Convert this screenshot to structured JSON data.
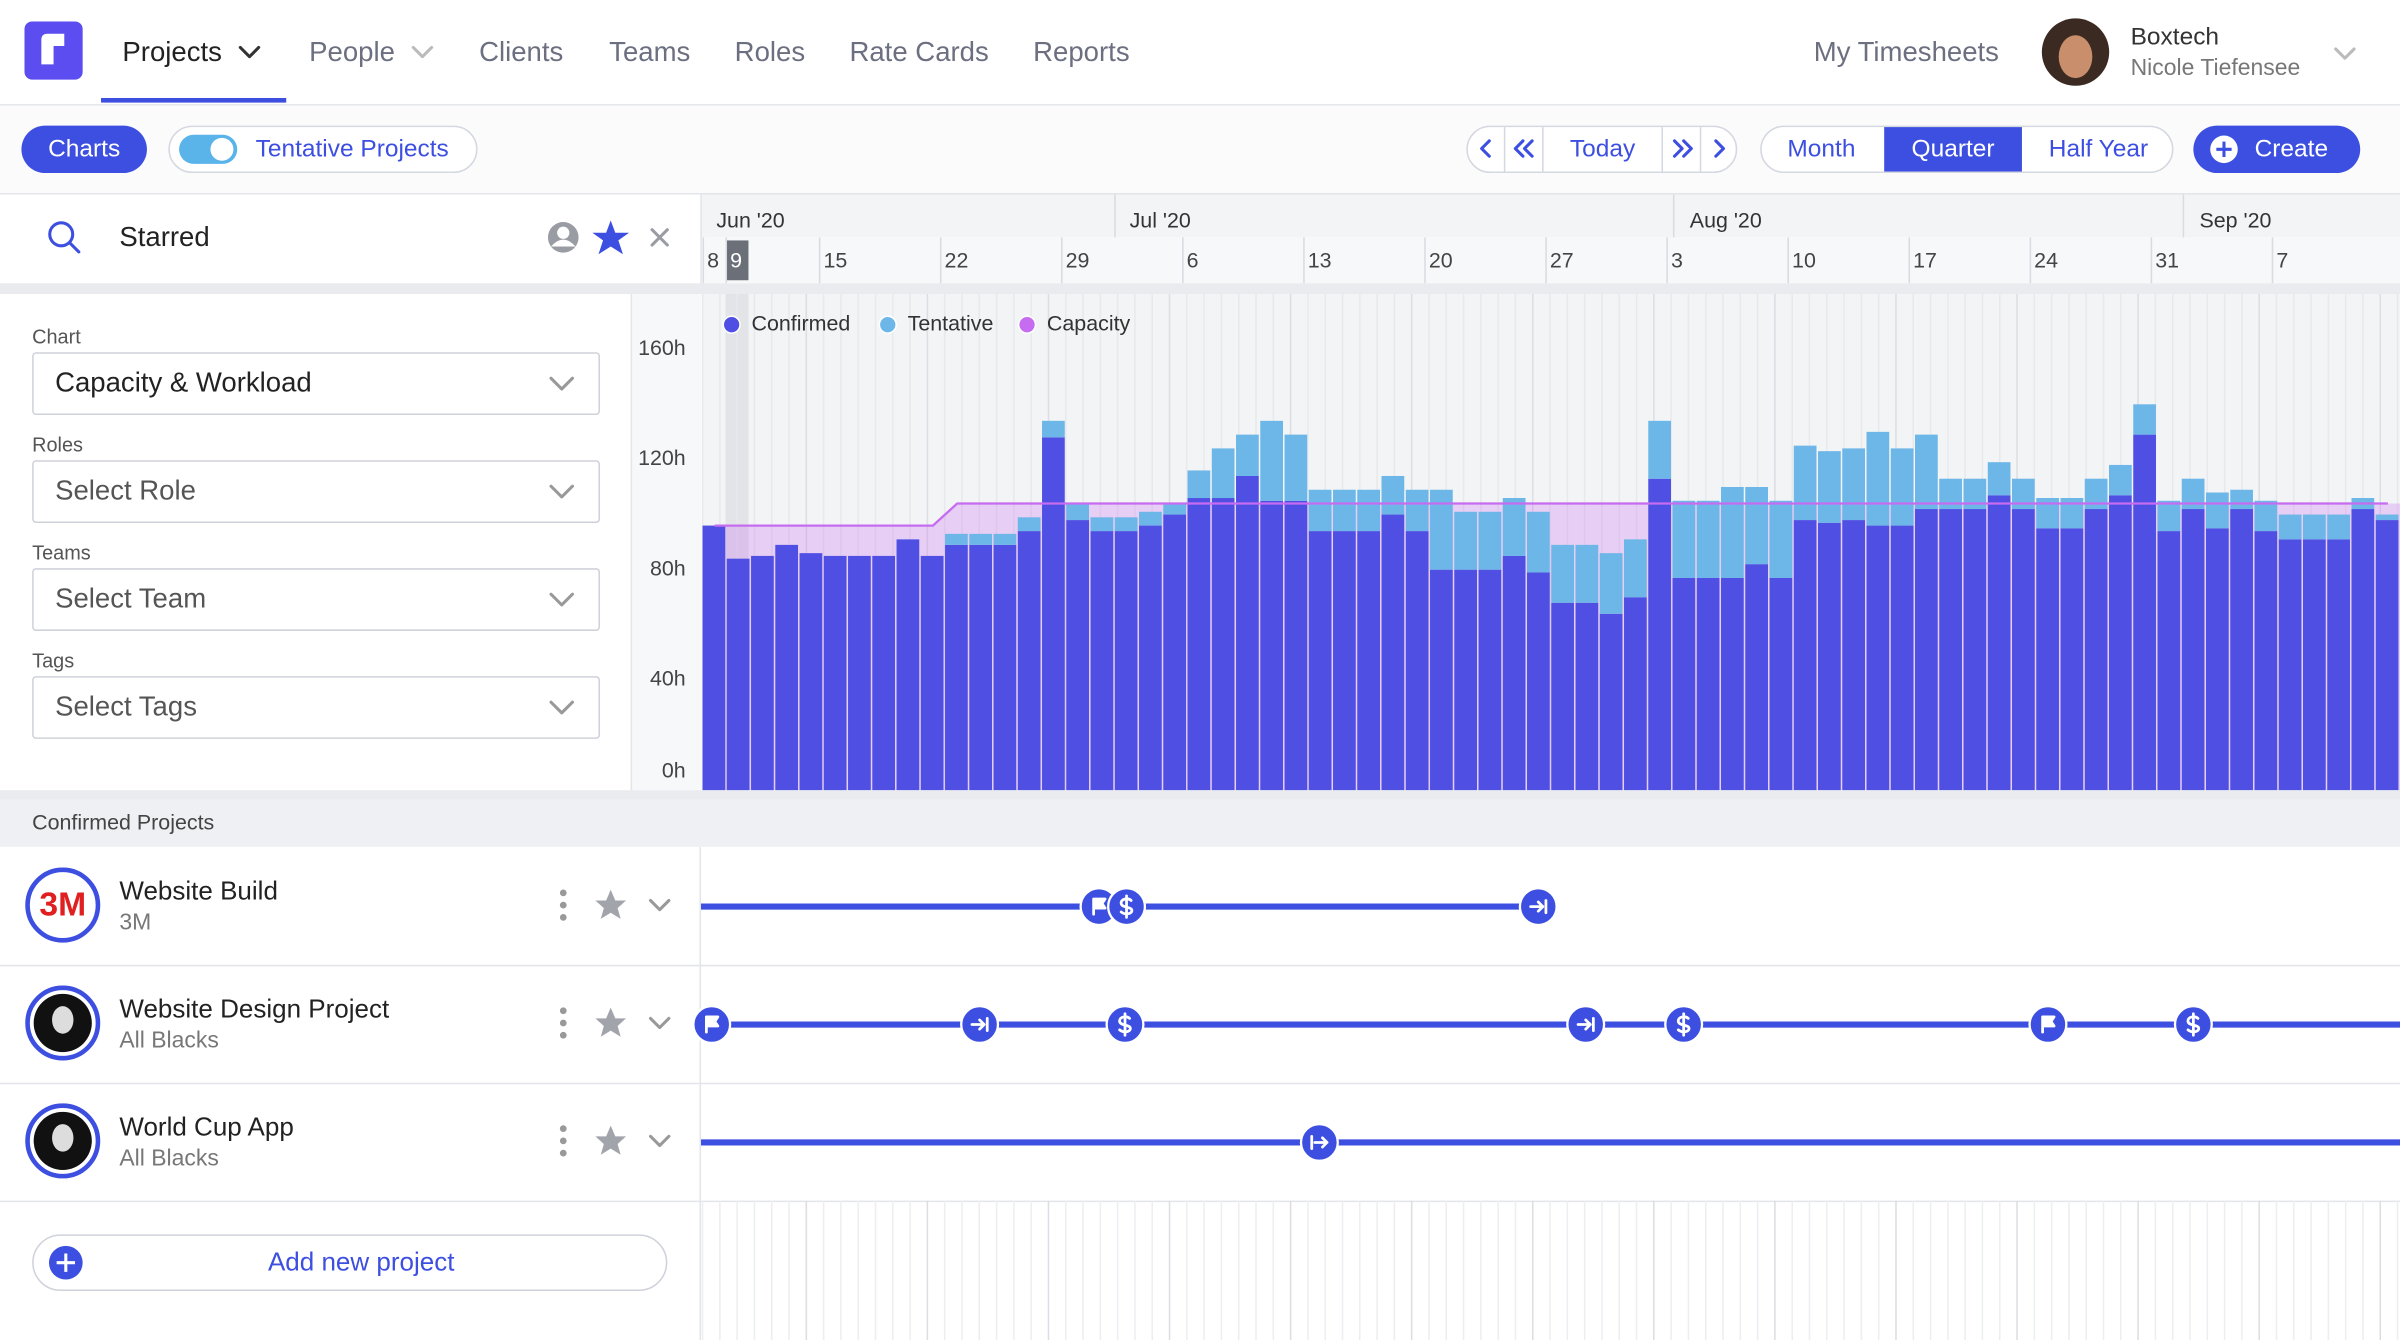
{
  "nav": {
    "items": [
      "Projects",
      "People",
      "Clients",
      "Teams",
      "Roles",
      "Rate Cards",
      "Reports"
    ],
    "my_timesheets": "My Timesheets",
    "company": "Boxtech",
    "user": "Nicole Tiefensee"
  },
  "toolbar": {
    "charts": "Charts",
    "tentative": "Tentative Projects",
    "today": "Today",
    "views": [
      "Month",
      "Quarter",
      "Half Year"
    ],
    "create": "Create"
  },
  "search": {
    "text": "Starred"
  },
  "timeline": {
    "months": [
      "Jun '20",
      "Jul '20",
      "Aug '20",
      "Sep '20"
    ],
    "days": [
      "8",
      "9",
      "15",
      "22",
      "29",
      "6",
      "13",
      "20",
      "27",
      "3",
      "10",
      "17",
      "24",
      "31",
      "7"
    ]
  },
  "filters": [
    {
      "label": "Chart",
      "value": "Capacity & Workload"
    },
    {
      "label": "Roles",
      "value": "Select Role"
    },
    {
      "label": "Teams",
      "value": "Select Team"
    },
    {
      "label": "Tags",
      "value": "Select Tags"
    }
  ],
  "chart_data": {
    "type": "bar",
    "stacked": true,
    "ylim": [
      0,
      180
    ],
    "yticks": [
      {
        "value": 0,
        "label": "0h"
      },
      {
        "value": 40,
        "label": "40h"
      },
      {
        "value": 80,
        "label": "80h"
      },
      {
        "value": 120,
        "label": "120h"
      },
      {
        "value": 160,
        "label": "160h"
      }
    ],
    "series": [
      {
        "name": "Confirmed",
        "color": "#4f4fe3",
        "values": [
          96,
          84,
          85,
          89,
          86,
          85,
          85,
          85,
          91,
          85,
          89,
          89,
          89,
          94,
          128,
          98,
          94,
          94,
          96,
          100,
          106,
          106,
          114,
          105,
          105,
          94,
          94,
          94,
          100,
          94,
          80,
          80,
          80,
          85,
          79,
          68,
          68,
          64,
          70,
          113,
          77,
          77,
          77,
          82,
          77,
          98,
          97,
          98,
          96,
          96,
          102,
          102,
          102,
          107,
          102,
          95,
          95,
          102,
          107,
          129,
          94,
          102,
          95,
          102,
          94,
          91,
          91,
          91,
          102,
          98
        ]
      },
      {
        "name": "Tentative",
        "color": "#6cb6e8",
        "values": [
          0,
          0,
          0,
          0,
          0,
          0,
          0,
          0,
          0,
          0,
          4,
          4,
          4,
          5,
          6,
          6,
          5,
          5,
          5,
          4,
          10,
          18,
          15,
          29,
          24,
          15,
          15,
          15,
          14,
          15,
          29,
          21,
          21,
          21,
          22,
          21,
          21,
          22,
          21,
          21,
          28,
          28,
          33,
          28,
          28,
          27,
          26,
          26,
          34,
          28,
          27,
          11,
          11,
          12,
          11,
          11,
          11,
          11,
          11,
          11,
          11,
          11,
          13,
          7,
          11,
          9,
          9,
          9,
          4,
          2
        ]
      },
      {
        "name": "Capacity",
        "color": "#c56cf0",
        "type": "line",
        "values": [
          96,
          96,
          96,
          96,
          96,
          96,
          96,
          96,
          96,
          96,
          104,
          104,
          104,
          104,
          104,
          104,
          104,
          104,
          104,
          104,
          104,
          104,
          104,
          104,
          104,
          104,
          104,
          104,
          104,
          104,
          104,
          104,
          104,
          104,
          104,
          104,
          104,
          104,
          104,
          104,
          104,
          104,
          104,
          104,
          104,
          104,
          104,
          104,
          104,
          104,
          104,
          104,
          104,
          104,
          104,
          104,
          104,
          104,
          104,
          104,
          104,
          104,
          104,
          104,
          104,
          104,
          104,
          104,
          104,
          104
        ]
      }
    ]
  },
  "section": "Confirmed Projects",
  "projects": [
    {
      "logo": "3M",
      "name": "Website Build",
      "client": "3M"
    },
    {
      "name": "Website Design Project",
      "client": "All Blacks"
    },
    {
      "name": "World Cup App",
      "client": "All Blacks"
    }
  ],
  "add_project": "Add new project"
}
